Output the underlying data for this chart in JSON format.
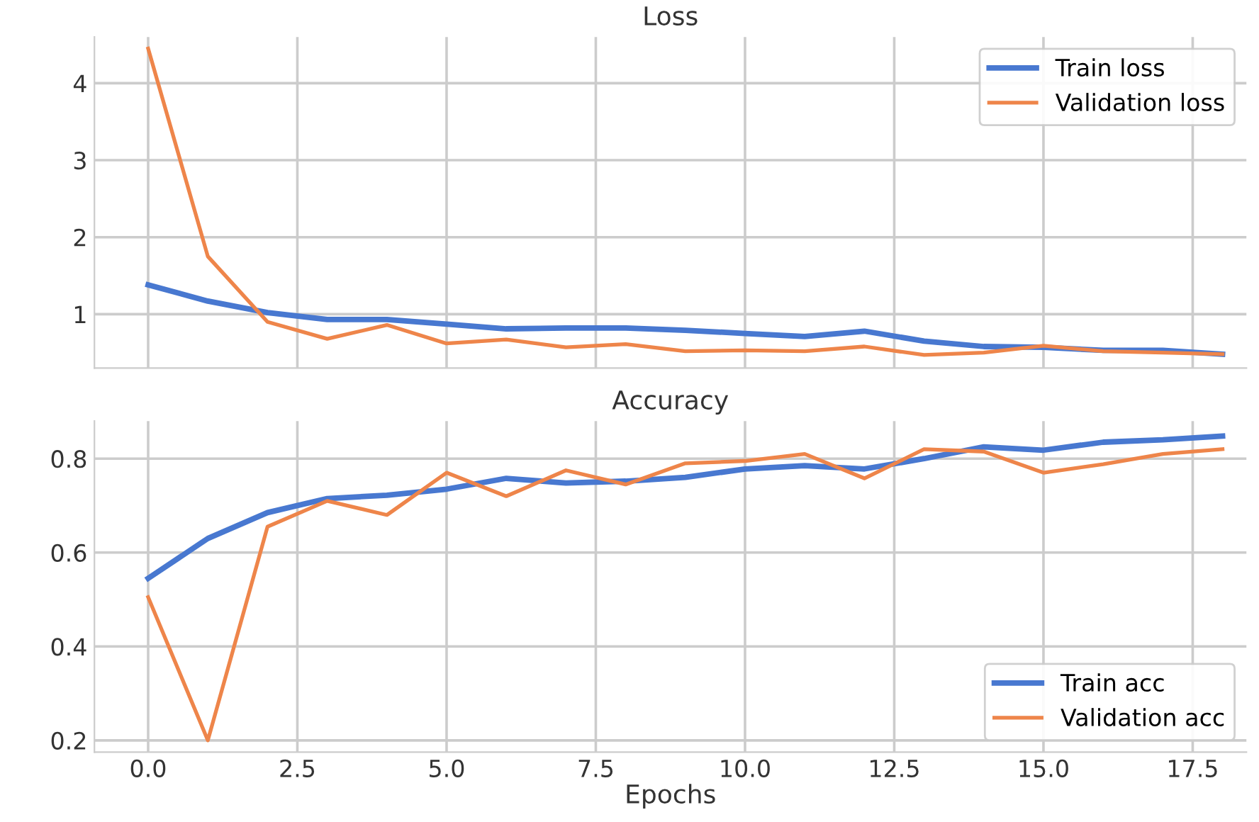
{
  "chart_data": [
    {
      "type": "line",
      "title": "Loss",
      "x": [
        0,
        1,
        2,
        3,
        4,
        5,
        6,
        7,
        8,
        9,
        10,
        11,
        12,
        13,
        14,
        15,
        16,
        17,
        18
      ],
      "series": [
        {
          "name": "Train loss",
          "color": "#4878d0",
          "values": [
            1.38,
            1.17,
            1.02,
            0.93,
            0.93,
            0.87,
            0.81,
            0.82,
            0.82,
            0.79,
            0.75,
            0.71,
            0.78,
            0.65,
            0.58,
            0.57,
            0.53,
            0.53,
            0.48
          ]
        },
        {
          "name": "Validation loss",
          "color": "#ee854a",
          "values": [
            4.45,
            1.75,
            0.9,
            0.68,
            0.86,
            0.62,
            0.67,
            0.57,
            0.61,
            0.52,
            0.53,
            0.52,
            0.58,
            0.47,
            0.5,
            0.59,
            0.52,
            0.5,
            0.48
          ]
        }
      ],
      "xlim": [
        -0.9,
        18.4
      ],
      "xticks": [
        0.0,
        2.5,
        5.0,
        7.5,
        10.0,
        12.5,
        15.0,
        17.5
      ],
      "ylim": [
        0.3,
        4.6
      ],
      "yticks": [
        1,
        2,
        3,
        4
      ],
      "tick_labels": "y",
      "grid": true,
      "legend": "top right"
    },
    {
      "type": "line",
      "title": "Accuracy",
      "xlabel": "Epochs",
      "x": [
        0,
        1,
        2,
        3,
        4,
        5,
        6,
        7,
        8,
        9,
        10,
        11,
        12,
        13,
        14,
        15,
        16,
        17,
        18
      ],
      "series": [
        {
          "name": "Train acc",
          "color": "#4878d0",
          "values": [
            0.545,
            0.63,
            0.685,
            0.715,
            0.722,
            0.735,
            0.758,
            0.748,
            0.752,
            0.76,
            0.778,
            0.785,
            0.778,
            0.8,
            0.825,
            0.818,
            0.835,
            0.84,
            0.848
          ]
        },
        {
          "name": "Validation acc",
          "color": "#ee854a",
          "values": [
            0.505,
            0.2,
            0.655,
            0.71,
            0.68,
            0.77,
            0.72,
            0.775,
            0.745,
            0.79,
            0.795,
            0.81,
            0.758,
            0.82,
            0.815,
            0.77,
            0.788,
            0.81,
            0.82
          ]
        }
      ],
      "xlim": [
        -0.9,
        18.4
      ],
      "xticks": [
        {
          "value": 0.0,
          "label": "0.0"
        },
        2.5,
        {
          "value": 5.0,
          "label": "5.0"
        },
        7.5,
        {
          "value": 10.0,
          "label": "10.0"
        },
        12.5,
        {
          "value": 15.0,
          "label": "15.0"
        },
        17.5
      ],
      "ylim": [
        0.175,
        0.88
      ],
      "yticks": [
        0.2,
        0.4,
        0.6,
        0.8
      ],
      "grid": true,
      "legend": "bottom right"
    }
  ]
}
